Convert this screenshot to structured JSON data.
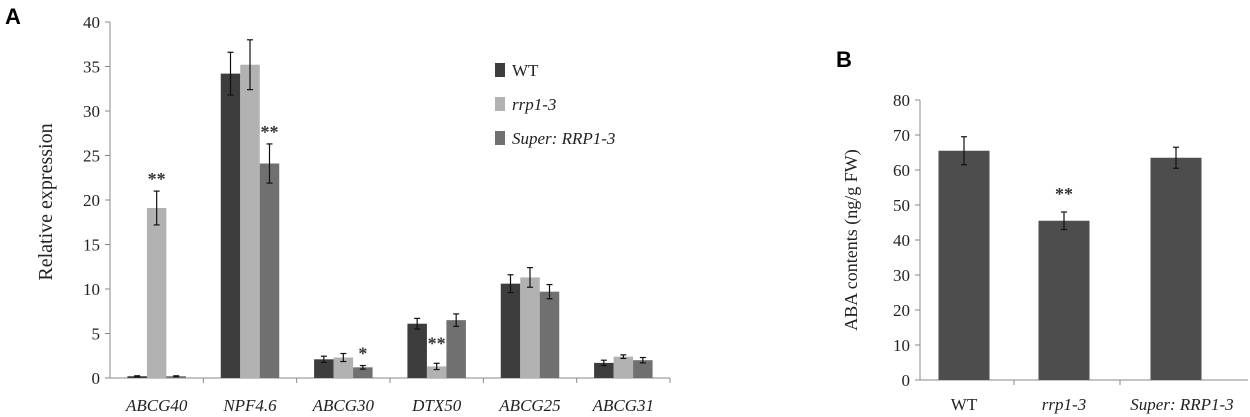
{
  "figure": {
    "panel_a_letter": "A",
    "panel_b_letter": "B"
  },
  "chart_data": [
    {
      "type": "bar",
      "panel": "A",
      "title": "",
      "xlabel": "",
      "ylabel": "Relative expression",
      "ylim": [
        0,
        40
      ],
      "yticks": [
        0,
        5,
        10,
        15,
        20,
        25,
        30,
        35,
        40
      ],
      "categories": [
        "ABCG40",
        "NPF4.6",
        "ABCG30",
        "DTX50",
        "ABCG25",
        "ABCG31"
      ],
      "categories_italic": true,
      "legend_position": "top-right",
      "grid": false,
      "series": [
        {
          "name": "WT",
          "italic": false,
          "color": "#3d3d3d",
          "values": [
            0.2,
            34.2,
            2.1,
            6.1,
            10.6,
            1.7
          ],
          "errors": [
            0.05,
            2.4,
            0.35,
            0.6,
            1.0,
            0.3
          ]
        },
        {
          "name": "rrp1-3",
          "italic": true,
          "color": "#b2b2b2",
          "values": [
            19.1,
            35.2,
            2.3,
            1.3,
            11.3,
            2.4
          ],
          "errors": [
            1.9,
            2.8,
            0.45,
            0.35,
            1.1,
            0.2
          ]
        },
        {
          "name": "Super: RRP1-3",
          "italic": true,
          "color": "#707070",
          "values": [
            0.2,
            24.1,
            1.2,
            6.5,
            9.7,
            2.0
          ],
          "errors": [
            0.05,
            2.2,
            0.2,
            0.7,
            0.8,
            0.3
          ]
        }
      ],
      "annotations": [
        {
          "text": "**",
          "category": 0,
          "series": 1
        },
        {
          "text": "**",
          "category": 1,
          "series": 2
        },
        {
          "text": "*",
          "category": 2,
          "series": 2
        },
        {
          "text": "**",
          "category": 3,
          "series": 1
        }
      ]
    },
    {
      "type": "bar",
      "panel": "B",
      "title": "",
      "xlabel": "",
      "ylabel": "ABA contents (ng/g FW)",
      "ylim": [
        0,
        80
      ],
      "yticks": [
        0,
        10,
        20,
        30,
        40,
        50,
        60,
        70,
        80
      ],
      "categories": [
        "WT",
        "rrp1-3",
        "Super: RRP1-3"
      ],
      "categories_italic": [
        false,
        true,
        true
      ],
      "grid": false,
      "color": "#4d4d4d",
      "values": [
        65.5,
        45.5,
        63.5
      ],
      "errors": [
        4.0,
        2.5,
        3.0
      ],
      "annotations": [
        {
          "text": "**",
          "category": 1
        }
      ]
    }
  ]
}
